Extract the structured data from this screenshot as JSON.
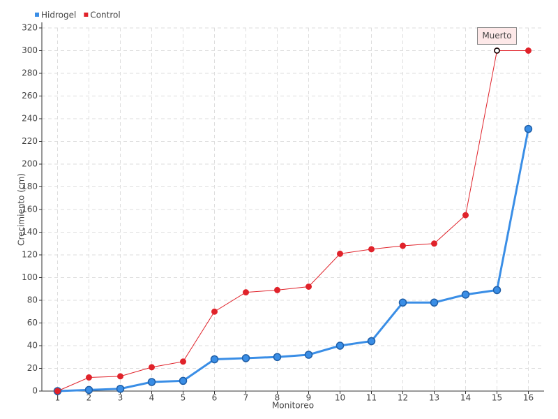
{
  "chart_data": {
    "type": "line",
    "y_label": "Crecimiento (cm)",
    "x_label": "Monitoreo",
    "categories": [
      1,
      2,
      3,
      4,
      5,
      6,
      7,
      8,
      9,
      10,
      11,
      12,
      13,
      14,
      15,
      16
    ],
    "series": [
      {
        "name": "Hidrogel",
        "color": "#3a8ee6",
        "values": [
          0,
          1,
          2,
          8,
          9,
          28,
          29,
          30,
          32,
          40,
          44,
          78,
          78,
          85,
          89,
          231
        ]
      },
      {
        "name": "Control",
        "color": "#e0222a",
        "values": [
          0,
          12,
          13,
          21,
          26,
          70,
          87,
          89,
          92,
          121,
          125,
          128,
          130,
          155,
          300,
          300
        ]
      }
    ],
    "annotation": {
      "text": "Muerto",
      "x": 15,
      "series": "Control"
    },
    "ylim": [
      0,
      320
    ],
    "yticks": [
      0,
      20,
      40,
      60,
      80,
      100,
      120,
      140,
      160,
      180,
      200,
      220,
      240,
      260,
      280,
      300,
      320
    ],
    "grid": true,
    "legend": "top-left"
  }
}
